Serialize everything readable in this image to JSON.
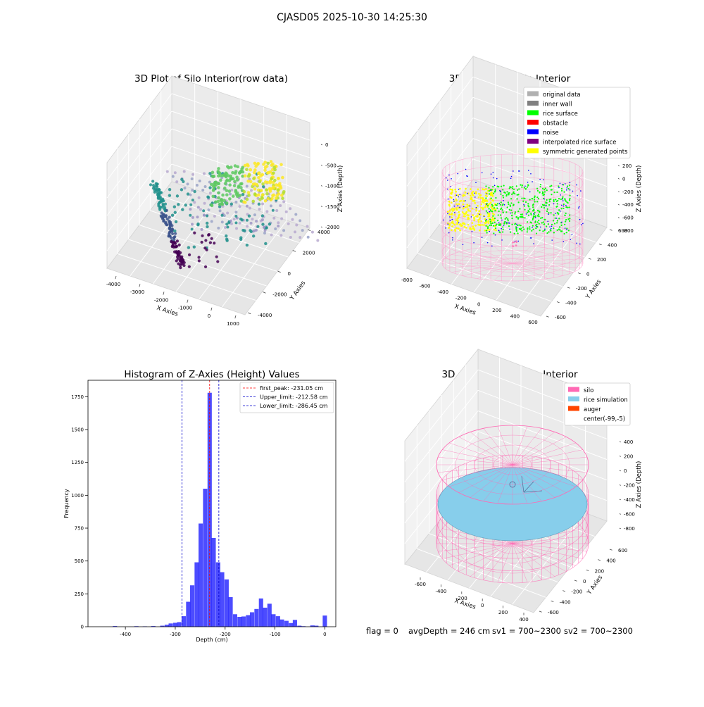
{
  "figure": {
    "suptitle": "CJASD05 2025-10-30 14:25:30",
    "status": {
      "flag": "flag = 0",
      "avg_depth": "avgDepth = 246 cm",
      "sv1": "sv1 = 700~2300",
      "sv2": "sv2 = 700~2300"
    }
  },
  "colors": {
    "silo_wire": "#ff69b4",
    "rice_simulation": "#87ceeb",
    "auger": "#ff4500",
    "hist_bar": "#0000ff",
    "first_peak_line": "#ff0000",
    "limit_line": "#0000cc",
    "pane": "#f2f2f2"
  },
  "chart_data": [
    {
      "id": "raw",
      "type": "scatter3d",
      "title": "3D Plot of Silo Interior(row data)",
      "xlabel": "X Axies",
      "ylabel": "Y Axies",
      "zlabel": "Z Axies (Depth)",
      "x_ticks": [
        "-4000",
        "-3000",
        "-2000",
        "-1000",
        "0",
        "1000"
      ],
      "y_ticks": [
        "-4000",
        "-2000",
        "0",
        "2000",
        "4000"
      ],
      "z_ticks": [
        "0",
        "-500",
        "-1000",
        "-1500",
        "-2000"
      ],
      "colormap": "viridis"
    },
    {
      "id": "classify",
      "type": "scatter3d",
      "title": "3D classify of Silo Interior",
      "xlabel": "X Axies",
      "ylabel": "Y Axies",
      "zlabel": "Z Axies (Depth)",
      "x_ticks": [
        "-800",
        "-600",
        "-400",
        "-200",
        "0",
        "200",
        "400",
        "600"
      ],
      "y_ticks": [
        "-600",
        "-400",
        "-200",
        "0",
        "200",
        "400",
        "600"
      ],
      "z_ticks": [
        "200",
        "0",
        "-200",
        "-400",
        "-600",
        "-800"
      ],
      "z_ticks_hidden": [
        "400"
      ],
      "legend": {
        "position": "upper-right",
        "entries": [
          {
            "label": "original data",
            "color": "#b0b0b0"
          },
          {
            "label": "inner wall",
            "color": "#808080"
          },
          {
            "label": "rice surface",
            "color": "#00ff00"
          },
          {
            "label": "obstacle",
            "color": "#ff0000"
          },
          {
            "label": "noise",
            "color": "#0000ff"
          },
          {
            "label": "interpolated rice surface",
            "color": "#800080"
          },
          {
            "label": "symmetric generated points",
            "color": "#ffff00"
          }
        ]
      }
    },
    {
      "id": "hist",
      "type": "bar",
      "title": "Histogram of Z-Axies (Height) Values",
      "xlabel": "Depth (cm)",
      "ylabel": "Frequency",
      "xlim": [
        -475,
        22
      ],
      "ylim": [
        0,
        1875
      ],
      "x_ticks": [
        -400,
        -300,
        -200,
        -100,
        0
      ],
      "y_ticks": [
        0,
        250,
        500,
        750,
        1000,
        1250,
        1500,
        1750
      ],
      "bin_width": 8.6,
      "bins": [
        {
          "x": -421,
          "v": 5
        },
        {
          "x": -378,
          "v": 4
        },
        {
          "x": -361,
          "v": 3
        },
        {
          "x": -344,
          "v": 5
        },
        {
          "x": -326,
          "v": 8
        },
        {
          "x": -317,
          "v": 15
        },
        {
          "x": -309,
          "v": 25
        },
        {
          "x": -300,
          "v": 30
        },
        {
          "x": -292,
          "v": 35
        },
        {
          "x": -283,
          "v": 80
        },
        {
          "x": -274,
          "v": 190
        },
        {
          "x": -266,
          "v": 315
        },
        {
          "x": -257,
          "v": 490
        },
        {
          "x": -249,
          "v": 785
        },
        {
          "x": -240,
          "v": 1050
        },
        {
          "x": -231,
          "v": 1780
        },
        {
          "x": -223,
          "v": 675
        },
        {
          "x": -214,
          "v": 490
        },
        {
          "x": -206,
          "v": 415
        },
        {
          "x": -197,
          "v": 360
        },
        {
          "x": -189,
          "v": 225
        },
        {
          "x": -180,
          "v": 95
        },
        {
          "x": -171,
          "v": 75
        },
        {
          "x": -163,
          "v": 78
        },
        {
          "x": -154,
          "v": 88
        },
        {
          "x": -146,
          "v": 110
        },
        {
          "x": -137,
          "v": 135
        },
        {
          "x": -128,
          "v": 215
        },
        {
          "x": -120,
          "v": 145
        },
        {
          "x": -111,
          "v": 175
        },
        {
          "x": -103,
          "v": 95
        },
        {
          "x": -94,
          "v": 80
        },
        {
          "x": -86,
          "v": 55
        },
        {
          "x": -77,
          "v": 45
        },
        {
          "x": -68,
          "v": 28
        },
        {
          "x": -60,
          "v": 52
        },
        {
          "x": -51,
          "v": 8
        },
        {
          "x": -43,
          "v": 4
        },
        {
          "x": -25,
          "v": 10
        },
        {
          "x": -17,
          "v": 8
        },
        {
          "x": 0,
          "v": 85
        }
      ],
      "vlines": [
        {
          "label": "first_peak: -231.05 cm",
          "x": -231.05,
          "color": "#ff0000"
        },
        {
          "label": "Upper_limit: -212.58 cm",
          "x": -212.58,
          "color": "#0000cc"
        },
        {
          "label": "Lower_limit: -286.45 cm",
          "x": -286.45,
          "color": "#0000cc"
        }
      ],
      "legend_position": "upper-right"
    },
    {
      "id": "simulation",
      "type": "surface3d",
      "title": "3D simulation of Silo Interior",
      "xlabel": "X Axies",
      "ylabel": "Y Axies",
      "zlabel": "Z Axies (Depth)",
      "x_ticks": [
        "-600",
        "-400",
        "-200",
        "0",
        "200",
        "400"
      ],
      "y_ticks": [
        "-600",
        "-400",
        "-200",
        "0",
        "200",
        "400",
        "600"
      ],
      "z_ticks": [
        "400",
        "200",
        "0",
        "-200",
        "-400",
        "-600",
        "-800"
      ],
      "legend": {
        "position": "upper-right",
        "entries": [
          {
            "label": "silo",
            "color": "#ff69b4"
          },
          {
            "label": "rice simulation",
            "color": "#87ceeb"
          },
          {
            "label": "auger",
            "color": "#ff4500"
          },
          {
            "label": "center(-99,-5)",
            "color": "none"
          }
        ]
      }
    }
  ]
}
